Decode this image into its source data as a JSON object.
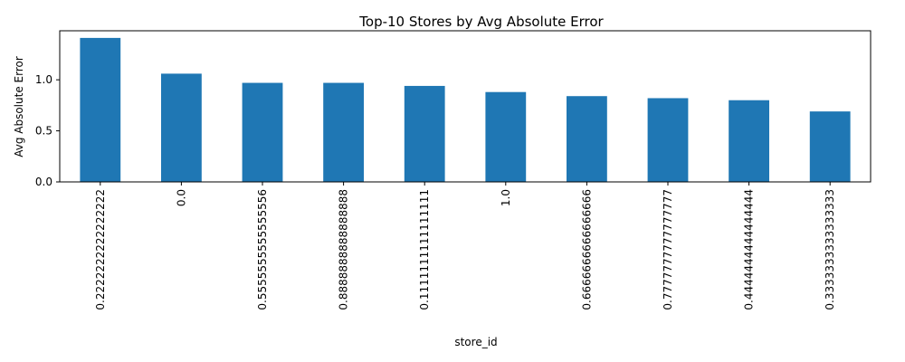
{
  "chart_data": {
    "type": "bar",
    "title": "Top-10 Stores by Avg Absolute Error",
    "xlabel": "store_id",
    "ylabel": "Avg Absolute Error",
    "categories": [
      "0.2222222222222222",
      "0.0",
      "0.5555555555555556",
      "0.8888888888888888",
      "0.1111111111111111",
      "1.0",
      "0.6666666666666666",
      "0.7777777777777777",
      "0.4444444444444444",
      "0.3333333333333333"
    ],
    "values": [
      1.41,
      1.06,
      0.97,
      0.97,
      0.94,
      0.88,
      0.84,
      0.82,
      0.8,
      0.69
    ],
    "ylim": [
      0,
      1.48
    ],
    "yticks": [
      0.0,
      0.5,
      1.0
    ],
    "ytick_labels": [
      "0.0",
      "0.5",
      "1.0"
    ],
    "bar_color": "#1f77b4",
    "grid": false,
    "legend": false
  }
}
